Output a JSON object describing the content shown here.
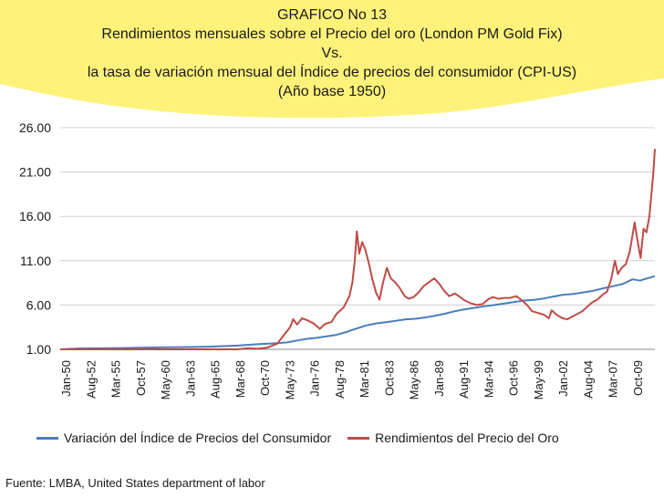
{
  "title": {
    "line1": "GRAFICO No 13",
    "line2": "Rendimientos mensuales sobre el Precio del oro (London PM Gold Fix)",
    "line3": "Vs.",
    "line4": "la tasa de variación mensual del Índice de precios del consumidor (CPI-US)",
    "line5": "(Año base 1950)"
  },
  "colors": {
    "cpi": "#4a7ebb",
    "gold": "#be4b48",
    "title_bg": "#fff27a"
  },
  "source": "Fuente: LMBA, United States department of labor",
  "chart_data": {
    "type": "line",
    "title": "GRAFICO No 13",
    "ylim": [
      1,
      26
    ],
    "y_ticks": [
      "26.00",
      "21.00",
      "16.00",
      "11.00",
      "6.00",
      "1.00"
    ],
    "y_tick_values": [
      26,
      21,
      16,
      11,
      6,
      1
    ],
    "x_range": [
      1950.0,
      2010.25
    ],
    "x_tick_labels": [
      "Jan-50",
      "Aug-52",
      "Mar-55",
      "Oct-57",
      "May-60",
      "Jan-63",
      "Aug-65",
      "Mar-68",
      "Oct-70",
      "May-73",
      "Jan-76",
      "Aug-78",
      "Mar-81",
      "Oct-83",
      "May-86",
      "Jan-89",
      "Aug-91",
      "Mar-94",
      "Oct-96",
      "May-99",
      "Jan-02",
      "Aug-04",
      "Mar-07",
      "Oct-09"
    ],
    "legend_position": "bottom",
    "grid": "horizontal",
    "series": [
      {
        "name": "Variación del Índice de Precios del Consumidor",
        "points": [
          [
            1950,
            1.0
          ],
          [
            1952,
            1.1
          ],
          [
            1955,
            1.12
          ],
          [
            1958,
            1.18
          ],
          [
            1960,
            1.22
          ],
          [
            1963,
            1.26
          ],
          [
            1965,
            1.3
          ],
          [
            1968,
            1.42
          ],
          [
            1970,
            1.58
          ],
          [
            1972,
            1.7
          ],
          [
            1973,
            1.78
          ],
          [
            1974,
            2.0
          ],
          [
            1975,
            2.18
          ],
          [
            1976,
            2.3
          ],
          [
            1977,
            2.46
          ],
          [
            1978,
            2.64
          ],
          [
            1979,
            2.95
          ],
          [
            1980,
            3.34
          ],
          [
            1981,
            3.7
          ],
          [
            1982,
            3.92
          ],
          [
            1983,
            4.06
          ],
          [
            1984,
            4.22
          ],
          [
            1985,
            4.38
          ],
          [
            1986,
            4.45
          ],
          [
            1987,
            4.6
          ],
          [
            1988,
            4.8
          ],
          [
            1989,
            5.02
          ],
          [
            1990,
            5.3
          ],
          [
            1991,
            5.52
          ],
          [
            1992,
            5.68
          ],
          [
            1993,
            5.86
          ],
          [
            1994,
            6.0
          ],
          [
            1995,
            6.18
          ],
          [
            1996,
            6.34
          ],
          [
            1997,
            6.5
          ],
          [
            1998,
            6.58
          ],
          [
            1999,
            6.74
          ],
          [
            2000,
            6.96
          ],
          [
            2001,
            7.16
          ],
          [
            2002,
            7.26
          ],
          [
            2003,
            7.42
          ],
          [
            2004,
            7.6
          ],
          [
            2005,
            7.88
          ],
          [
            2006,
            8.12
          ],
          [
            2007,
            8.38
          ],
          [
            2008,
            8.9
          ],
          [
            2008.75,
            8.75
          ],
          [
            2009,
            8.85
          ],
          [
            2010.25,
            9.25
          ]
        ]
      },
      {
        "name": "Rendimientos del Precio del Oro",
        "points": [
          [
            1950,
            1.0
          ],
          [
            1968,
            1.0
          ],
          [
            1969,
            1.12
          ],
          [
            1970,
            1.06
          ],
          [
            1971,
            1.2
          ],
          [
            1972,
            1.65
          ],
          [
            1972.8,
            2.8
          ],
          [
            1973.3,
            3.5
          ],
          [
            1973.6,
            4.4
          ],
          [
            1974,
            3.8
          ],
          [
            1974.5,
            4.5
          ],
          [
            1975,
            4.3
          ],
          [
            1975.7,
            3.9
          ],
          [
            1976.3,
            3.3
          ],
          [
            1976.8,
            3.85
          ],
          [
            1977.5,
            4.1
          ],
          [
            1978,
            5.0
          ],
          [
            1978.7,
            5.7
          ],
          [
            1979.3,
            7.0
          ],
          [
            1979.6,
            8.5
          ],
          [
            1979.85,
            11.0
          ],
          [
            1980.05,
            14.3
          ],
          [
            1980.3,
            11.8
          ],
          [
            1980.6,
            13.1
          ],
          [
            1980.9,
            12.3
          ],
          [
            1981.3,
            10.6
          ],
          [
            1981.6,
            9.0
          ],
          [
            1982.0,
            7.4
          ],
          [
            1982.35,
            6.6
          ],
          [
            1982.7,
            8.5
          ],
          [
            1983.1,
            10.2
          ],
          [
            1983.5,
            9.0
          ],
          [
            1983.9,
            8.6
          ],
          [
            1984.4,
            7.9
          ],
          [
            1984.9,
            7.0
          ],
          [
            1985.3,
            6.7
          ],
          [
            1985.8,
            6.9
          ],
          [
            1986.3,
            7.4
          ],
          [
            1986.8,
            8.1
          ],
          [
            1987.4,
            8.6
          ],
          [
            1987.9,
            9.0
          ],
          [
            1988.4,
            8.4
          ],
          [
            1988.9,
            7.6
          ],
          [
            1989.4,
            7.0
          ],
          [
            1990.0,
            7.3
          ],
          [
            1990.5,
            6.9
          ],
          [
            1991.0,
            6.5
          ],
          [
            1991.6,
            6.2
          ],
          [
            1992.2,
            6.0
          ],
          [
            1992.8,
            6.1
          ],
          [
            1993.3,
            6.6
          ],
          [
            1993.8,
            6.9
          ],
          [
            1994.4,
            6.7
          ],
          [
            1995.0,
            6.8
          ],
          [
            1995.6,
            6.8
          ],
          [
            1996.2,
            7.0
          ],
          [
            1996.8,
            6.5
          ],
          [
            1997.3,
            6.0
          ],
          [
            1997.8,
            5.3
          ],
          [
            1998.4,
            5.1
          ],
          [
            1999.0,
            4.9
          ],
          [
            1999.5,
            4.5
          ],
          [
            1999.8,
            5.4
          ],
          [
            2000.3,
            4.9
          ],
          [
            2000.9,
            4.5
          ],
          [
            2001.4,
            4.4
          ],
          [
            2001.9,
            4.7
          ],
          [
            2002.4,
            5.0
          ],
          [
            2002.9,
            5.3
          ],
          [
            2003.4,
            5.8
          ],
          [
            2003.9,
            6.3
          ],
          [
            2004.4,
            6.6
          ],
          [
            2004.9,
            7.1
          ],
          [
            2005.4,
            7.5
          ],
          [
            2005.8,
            8.8
          ],
          [
            2006.2,
            11.0
          ],
          [
            2006.5,
            9.5
          ],
          [
            2006.9,
            10.2
          ],
          [
            2007.3,
            10.6
          ],
          [
            2007.7,
            12.0
          ],
          [
            2008.0,
            14.0
          ],
          [
            2008.2,
            15.3
          ],
          [
            2008.5,
            13.2
          ],
          [
            2008.8,
            11.3
          ],
          [
            2009.1,
            14.6
          ],
          [
            2009.4,
            14.2
          ],
          [
            2009.7,
            16.0
          ],
          [
            2009.9,
            18.5
          ],
          [
            2010.1,
            21.0
          ],
          [
            2010.25,
            23.6
          ]
        ]
      }
    ]
  }
}
